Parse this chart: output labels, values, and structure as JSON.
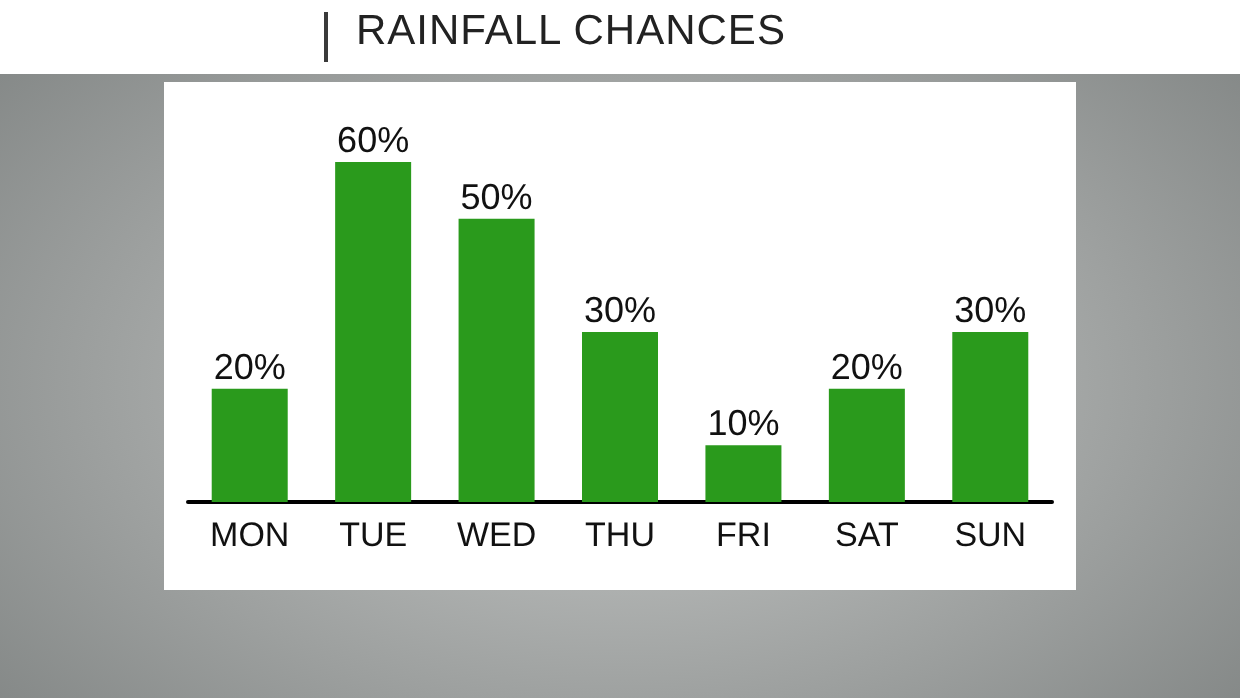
{
  "chart_data": {
    "type": "bar",
    "title": "RAINFALL CHANCES",
    "categories": [
      "MON",
      "TUE",
      "WED",
      "THU",
      "FRI",
      "SAT",
      "SUN"
    ],
    "values": [
      20,
      60,
      50,
      30,
      10,
      20,
      30
    ],
    "color": "#2a9a1c",
    "value_labels": [
      "20%",
      "60%",
      "50%",
      "30%",
      "10%",
      "20%",
      "30%"
    ]
  }
}
